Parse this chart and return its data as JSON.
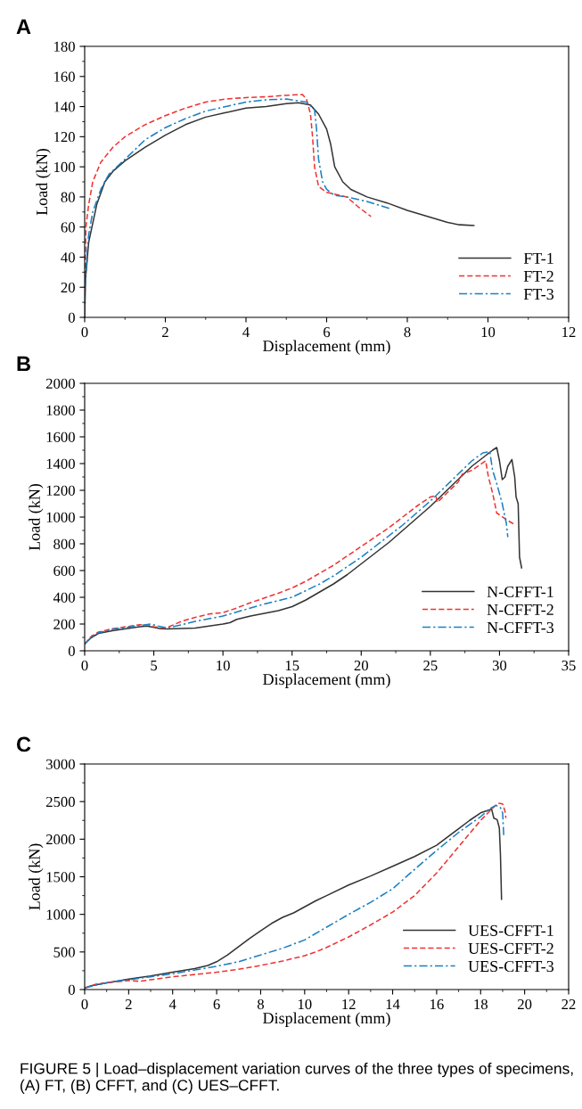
{
  "chart_data": [
    {
      "type": "line",
      "title": "A",
      "xlabel": "Displacement (mm)",
      "ylabel": "Load (kN)",
      "xlim": [
        0,
        12
      ],
      "xticks": [
        0,
        2,
        4,
        6,
        8,
        10,
        12
      ],
      "ylim": [
        0,
        180
      ],
      "yticks": [
        0,
        20,
        40,
        60,
        80,
        100,
        120,
        140,
        160,
        180
      ],
      "grid": false,
      "legend": "bottom right",
      "marker": "none",
      "series": [
        {
          "name": "FT-1",
          "color": "#333333",
          "line_style": "solid",
          "x": [
            0,
            0.02,
            0.1,
            0.3,
            0.5,
            0.7,
            1,
            1.5,
            2,
            2.5,
            3,
            3.5,
            4,
            4.5,
            5,
            5.3,
            5.6,
            5.8,
            6,
            6.1,
            6.2,
            6.4,
            6.6,
            7,
            7.5,
            8,
            8.5,
            9,
            9.3,
            9.65
          ],
          "values": [
            0,
            25,
            50,
            75,
            90,
            97,
            104,
            113,
            121,
            128,
            133,
            136,
            139,
            140,
            142,
            142.5,
            141,
            135,
            125,
            115,
            100,
            90,
            85,
            80,
            76,
            71,
            67,
            63,
            61.5,
            61
          ]
        },
        {
          "name": "FT-2",
          "color": "#ee3333",
          "line_style": "dashed",
          "x": [
            0,
            0.01,
            0.03,
            0.1,
            0.2,
            0.4,
            0.7,
            1,
            1.5,
            2,
            2.5,
            3,
            3.5,
            4,
            4.5,
            5,
            5.4,
            5.5,
            5.6,
            5.65,
            5.7,
            5.8,
            6,
            6.5,
            6.8,
            7.1
          ],
          "values": [
            0,
            30,
            60,
            75,
            90,
            103,
            113,
            120,
            128,
            134,
            139,
            143,
            145,
            146,
            146.5,
            147.5,
            148,
            145,
            135,
            120,
            100,
            87,
            83,
            80,
            73,
            67
          ]
        },
        {
          "name": "FT-3",
          "color": "#1a7fc1",
          "line_style": "dashdot",
          "x": [
            0,
            0.01,
            0.05,
            0.1,
            0.2,
            0.4,
            0.6,
            1,
            1.5,
            2,
            2.5,
            3,
            3.5,
            4,
            4.5,
            5,
            5.5,
            5.7,
            5.75,
            5.8,
            5.9,
            6,
            6.2,
            6.5,
            7,
            7.6
          ],
          "values": [
            0,
            20,
            40,
            55,
            70,
            85,
            95,
            105,
            118,
            126,
            132,
            137,
            140,
            143,
            144.5,
            145,
            143,
            138,
            125,
            105,
            90,
            85,
            81,
            80,
            77,
            72
          ]
        }
      ]
    },
    {
      "type": "line",
      "title": "B",
      "xlabel": "Displacement (mm)",
      "ylabel": "Load (kN)",
      "xlim": [
        0,
        35
      ],
      "xticks": [
        0,
        5,
        10,
        15,
        20,
        25,
        30,
        35
      ],
      "ylim": [
        0,
        2000
      ],
      "yticks": [
        0,
        200,
        400,
        600,
        800,
        1000,
        1200,
        1400,
        1600,
        1800,
        2000
      ],
      "grid": false,
      "legend": "bottom right",
      "marker": "none",
      "series": [
        {
          "name": "N-CFFT-1",
          "color": "#333333",
          "line_style": "solid",
          "x": [
            0,
            0.5,
            1,
            2,
            3,
            4,
            4.5,
            5,
            5.5,
            6,
            8,
            10,
            10.5,
            11,
            12,
            13,
            14,
            15,
            16,
            17,
            18,
            19,
            20,
            21,
            22,
            23,
            24,
            25,
            26,
            27,
            28,
            29,
            29.5,
            29.8,
            30,
            30.2,
            30.4,
            30.6,
            30.9,
            31.1,
            31.2,
            31.35,
            31.45,
            31.6
          ],
          "values": [
            50,
            100,
            130,
            150,
            165,
            180,
            185,
            175,
            165,
            163,
            170,
            200,
            210,
            235,
            260,
            280,
            300,
            330,
            380,
            440,
            500,
            570,
            650,
            730,
            810,
            900,
            990,
            1080,
            1180,
            1280,
            1380,
            1460,
            1500,
            1520,
            1420,
            1280,
            1300,
            1380,
            1430,
            1300,
            1150,
            1100,
            700,
            620
          ]
        },
        {
          "name": "N-CFFT-2",
          "color": "#ee3333",
          "line_style": "dashed",
          "x": [
            0,
            0.5,
            1,
            2,
            3,
            4,
            4.6,
            5,
            5.5,
            6,
            7,
            8,
            9,
            10,
            11,
            12,
            13,
            14,
            15,
            16,
            17,
            18,
            19,
            20,
            21,
            22,
            23,
            24,
            25,
            25.4,
            25.5,
            26,
            27,
            27.3,
            28,
            29,
            29.2,
            29.5,
            29.8,
            30.5,
            31
          ],
          "values": [
            50,
            110,
            140,
            165,
            180,
            195,
            195,
            180,
            170,
            175,
            220,
            250,
            275,
            285,
            320,
            360,
            395,
            430,
            470,
            520,
            580,
            640,
            710,
            780,
            850,
            920,
            1000,
            1080,
            1150,
            1160,
            1110,
            1160,
            1260,
            1320,
            1350,
            1420,
            1300,
            1180,
            1030,
            980,
            950
          ]
        },
        {
          "name": "N-CFFT-3",
          "color": "#1a7fc1",
          "line_style": "dashdot",
          "x": [
            0,
            0.5,
            1,
            2,
            3,
            4,
            4.8,
            5.3,
            6,
            7,
            8,
            9,
            10,
            11,
            12,
            13,
            14,
            15,
            16,
            17,
            18,
            19,
            20,
            21,
            22,
            23,
            24,
            25,
            26,
            27,
            28,
            28.8,
            29.3,
            29.5,
            29.8,
            30.2,
            30.5,
            30.6
          ],
          "values": [
            50,
            105,
            135,
            160,
            175,
            190,
            200,
            185,
            170,
            195,
            220,
            240,
            260,
            290,
            320,
            350,
            375,
            400,
            450,
            500,
            560,
            630,
            700,
            780,
            860,
            940,
            1030,
            1120,
            1220,
            1320,
            1420,
            1480,
            1490,
            1350,
            1250,
            1100,
            950,
            850
          ]
        }
      ]
    },
    {
      "type": "line",
      "title": "C",
      "xlabel": "Displacement (mm)",
      "ylabel": "Load (kN)",
      "xlim": [
        0,
        22
      ],
      "xticks": [
        0,
        2,
        4,
        6,
        8,
        10,
        12,
        14,
        16,
        18,
        20,
        22
      ],
      "ylim": [
        0,
        3000
      ],
      "yticks": [
        0,
        500,
        1000,
        1500,
        2000,
        2500,
        3000
      ],
      "grid": false,
      "legend": "bottom right",
      "marker": "none",
      "annotations": [
        "FIGURE 5 | Load–displacement variation curves of the three types of specimens, (A) FT, (B) CFFT, and (C) UES–CFFT."
      ],
      "series": [
        {
          "name": "UES-CFFT-1",
          "color": "#333333",
          "line_style": "solid",
          "x": [
            0,
            0.3,
            1,
            2,
            3,
            4,
            5,
            5.6,
            6,
            6.5,
            7,
            7.5,
            8,
            8.5,
            9,
            9.5,
            10,
            10.5,
            11,
            12,
            13,
            14,
            15,
            16,
            17,
            17.5,
            18,
            18.3,
            18.5,
            18.6,
            18.75,
            18.85,
            18.9,
            18.95
          ],
          "values": [
            20,
            50,
            90,
            140,
            180,
            230,
            280,
            320,
            370,
            460,
            570,
            680,
            780,
            880,
            960,
            1020,
            1100,
            1180,
            1250,
            1390,
            1510,
            1640,
            1770,
            1920,
            2140,
            2250,
            2350,
            2380,
            2400,
            2280,
            2260,
            2150,
            1800,
            1200
          ]
        },
        {
          "name": "UES-CFFT-2",
          "color": "#ee3333",
          "line_style": "dashed",
          "x": [
            0,
            0.5,
            1,
            2,
            2.5,
            3,
            4,
            5,
            6,
            7,
            8,
            9,
            10,
            10.5,
            11,
            12,
            13,
            14,
            15,
            16,
            17,
            18,
            18.5,
            18.8,
            19,
            19.1,
            19.15
          ],
          "values": [
            20,
            70,
            90,
            120,
            110,
            130,
            170,
            200,
            230,
            270,
            320,
            380,
            450,
            500,
            560,
            700,
            860,
            1030,
            1250,
            1550,
            1900,
            2250,
            2400,
            2480,
            2470,
            2380,
            2280
          ]
        },
        {
          "name": "UES-CFFT-3",
          "color": "#1a7fc1",
          "line_style": "dashdot",
          "x": [
            0,
            0.5,
            1,
            2,
            3,
            4,
            5,
            6,
            7,
            8,
            9,
            10,
            11,
            12,
            13,
            14,
            15,
            16,
            17,
            18,
            18.5,
            18.7,
            18.9,
            19,
            19.05
          ],
          "values": [
            20,
            60,
            90,
            130,
            170,
            210,
            260,
            310,
            370,
            460,
            550,
            660,
            830,
            1000,
            1160,
            1340,
            1600,
            1850,
            2090,
            2300,
            2420,
            2450,
            2420,
            2350,
            2050
          ]
        }
      ]
    }
  ]
}
